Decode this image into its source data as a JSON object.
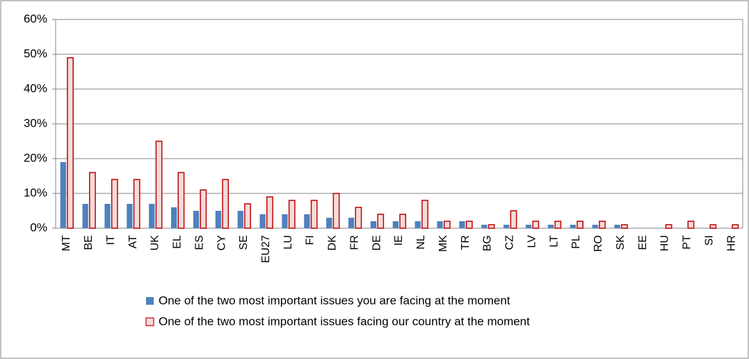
{
  "chart_data": {
    "type": "bar",
    "categories": [
      "MT",
      "BE",
      "IT",
      "AT",
      "UK",
      "EL",
      "ES",
      "CY",
      "SE",
      "EU27",
      "LU",
      "FI",
      "DK",
      "FR",
      "DE",
      "IE",
      "NL",
      "MK",
      "TR",
      "BG",
      "CZ",
      "LV",
      "LT",
      "PL",
      "RO",
      "SK",
      "EE",
      "HU",
      "PT",
      "SI",
      "HR"
    ],
    "series": [
      {
        "name": "One of the two most important issues you are facing at the moment",
        "color": "#4f81bd",
        "values": [
          19,
          7,
          7,
          7,
          7,
          6,
          5,
          5,
          5,
          4,
          4,
          4,
          3,
          3,
          2,
          2,
          2,
          2,
          2,
          1,
          1,
          1,
          1,
          1,
          1,
          1,
          0,
          0,
          0,
          0,
          0
        ]
      },
      {
        "name": "One of the two most important issues facing our country at the moment",
        "color": "#f2dcdb",
        "edge_color": "#c00000",
        "values": [
          49,
          16,
          14,
          14,
          25,
          16,
          11,
          14,
          7,
          9,
          8,
          8,
          10,
          6,
          4,
          4,
          8,
          2,
          2,
          1,
          5,
          2,
          2,
          2,
          2,
          1,
          0,
          1,
          2,
          1,
          1
        ]
      }
    ],
    "ylim": [
      0,
      60
    ],
    "yticks": [
      {
        "value": 0,
        "label": "0%"
      },
      {
        "value": 10,
        "label": "10%"
      },
      {
        "value": 20,
        "label": "20%"
      },
      {
        "value": 30,
        "label": "30%"
      },
      {
        "value": 40,
        "label": "40%"
      },
      {
        "value": 50,
        "label": "50%"
      },
      {
        "value": 60,
        "label": "60%"
      }
    ],
    "grid": true,
    "legend": "bottom"
  }
}
